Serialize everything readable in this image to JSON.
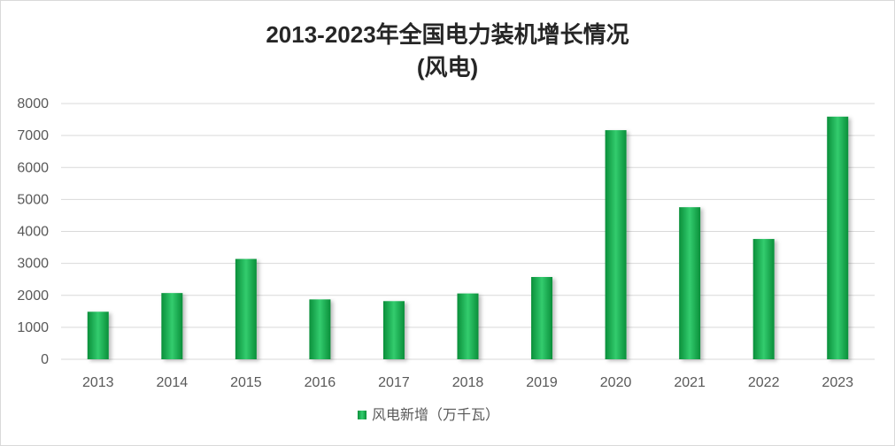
{
  "chart_data": {
    "type": "bar",
    "title": "2013-2023年全国电力装机增长情况",
    "subtitle": "(风电)",
    "xlabel": "",
    "ylabel": "",
    "categories": [
      "2013",
      "2014",
      "2015",
      "2016",
      "2017",
      "2018",
      "2019",
      "2020",
      "2021",
      "2022",
      "2023"
    ],
    "series": [
      {
        "name": "风电新增（万千瓦）",
        "values": [
          1487,
          2072,
          3139,
          1873,
          1819,
          2059,
          2574,
          7167,
          4757,
          3763,
          7590
        ]
      }
    ],
    "y_ticks": [
      "0",
      "1000",
      "2000",
      "3000",
      "4000",
      "5000",
      "6000",
      "7000",
      "8000"
    ],
    "ylim": [
      0,
      8000
    ],
    "grid": "horizontal",
    "legend_position": "bottom",
    "colors": {
      "bar_light": "#33cc6e",
      "bar_dark": "#0a8f3a",
      "grid": "#d9d9d9",
      "text": "#595959"
    }
  }
}
